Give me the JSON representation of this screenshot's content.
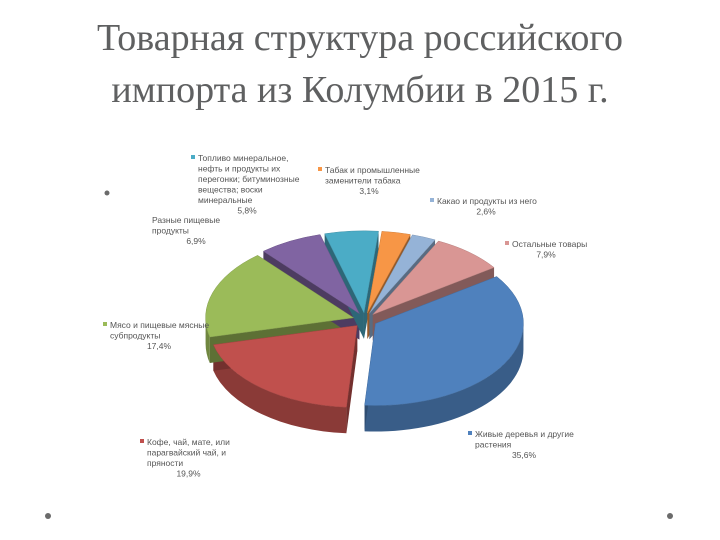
{
  "slide": {
    "title_line1": "Товарная структура российского",
    "title_line2": "импорта из Колумбии в 2015 г."
  },
  "chart_data": {
    "type": "pie",
    "title": "",
    "legend": "none",
    "slices": [
      {
        "label": "Живые деревья и другие растения",
        "value": 35.6,
        "value_label": "35,6%",
        "color": "#4f81bd"
      },
      {
        "label": "Кофе, чай, мате, или парагвайский чай, и пряности",
        "value": 19.9,
        "value_label": "19,9%",
        "color": "#c0504d"
      },
      {
        "label": "Мясо и пищевые мясные субпродукты",
        "value": 17.4,
        "value_label": "17,4%",
        "color": "#9bbb59"
      },
      {
        "label": "Разные пищевые продукты",
        "value": 6.9,
        "value_label": "6,9%",
        "color": "#8064a2"
      },
      {
        "label": "Топливо минеральное, нефть и продукты их перегонки; битуминозные вещества; воски минеральные",
        "value": 5.8,
        "value_label": "5,8%",
        "color": "#4bacc6"
      },
      {
        "label": "Табак и промышленные заменители табака",
        "value": 3.1,
        "value_label": "3,1%",
        "color": "#f79646"
      },
      {
        "label": "Какао и продукты из него",
        "value": 2.6,
        "value_label": "2,6%",
        "color": "#95b3d7"
      },
      {
        "label": "Остальные товары",
        "value": 7.9,
        "value_label": "7,9%",
        "color": "#d99694"
      }
    ]
  }
}
